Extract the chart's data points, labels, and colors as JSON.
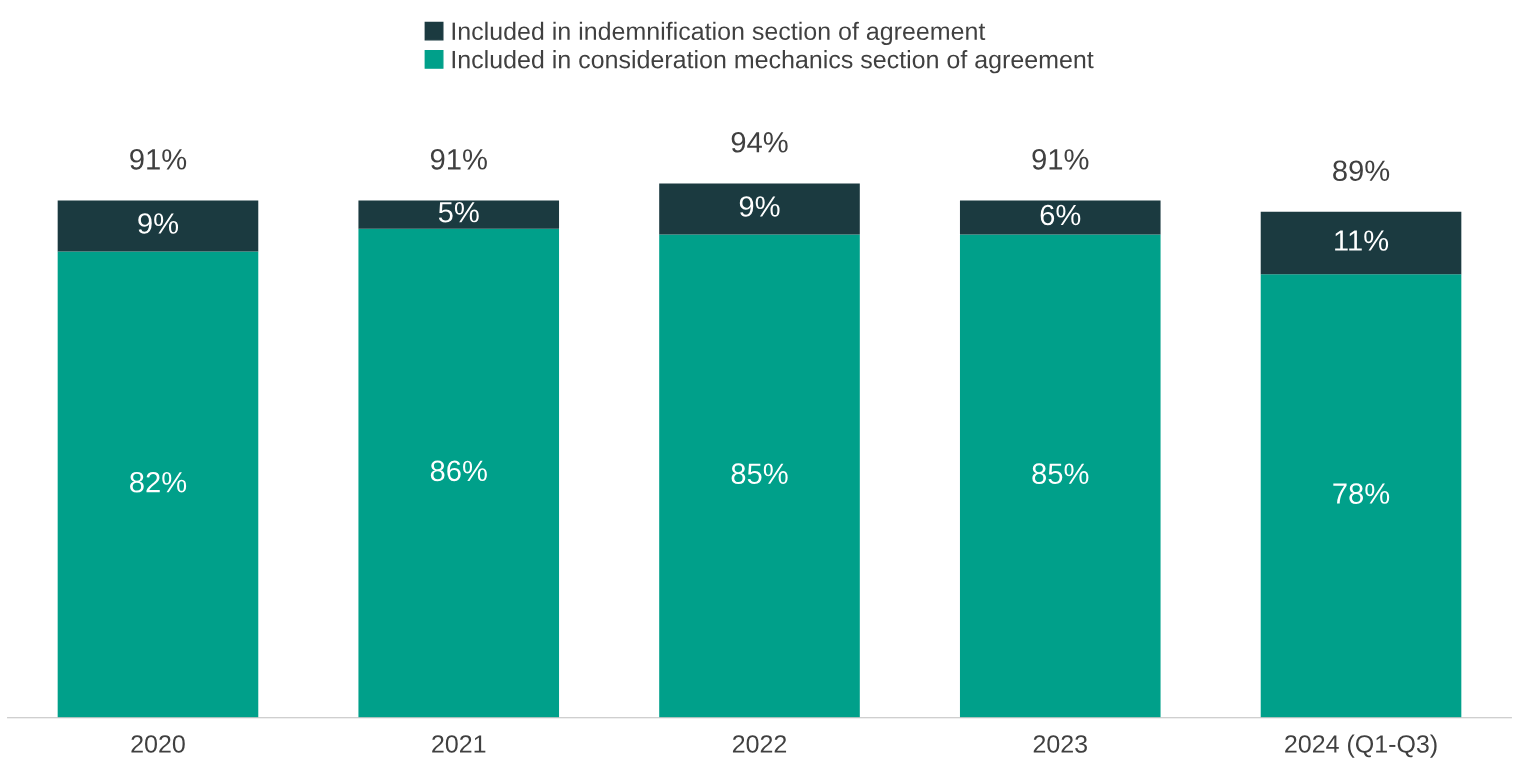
{
  "chart_data": {
    "type": "bar",
    "stacked": true,
    "categories": [
      "2020",
      "2021",
      "2022",
      "2023",
      "2024 (Q1-Q3)"
    ],
    "series": [
      {
        "name": "Included in consideration mechanics section of agreement",
        "color": "#00a08a",
        "values": [
          82,
          86,
          85,
          85,
          78
        ],
        "value_labels": [
          "82%",
          "86%",
          "85%",
          "85%",
          "78%"
        ]
      },
      {
        "name": "Included in indemnification section of agreement",
        "color": "#1b3a40",
        "values": [
          9,
          5,
          9,
          6,
          11
        ],
        "value_labels": [
          "9%",
          "5%",
          "9%",
          "6%",
          "11%"
        ]
      }
    ],
    "totals": [
      "91%",
      "91%",
      "94%",
      "91%",
      "89%"
    ],
    "grid": false,
    "legend": "top"
  }
}
